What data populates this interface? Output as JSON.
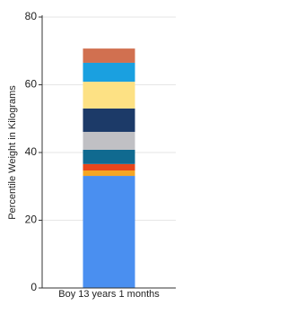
{
  "chart_data": {
    "type": "stacked-bar",
    "y_label": "Percentile Weight in Kilograms",
    "categories": [
      "Boy 13 years 1 months"
    ],
    "series": [
      {
        "color": "#4a8ff0",
        "values": [
          33.1
        ]
      },
      {
        "color": "#f5a623",
        "values": [
          1.6
        ]
      },
      {
        "color": "#e8461a",
        "values": [
          1.9
        ]
      },
      {
        "color": "#106a90",
        "values": [
          4.2
        ]
      },
      {
        "color": "#c0c0c4",
        "values": [
          5.3
        ]
      },
      {
        "color": "#1c3a68",
        "values": [
          6.9
        ]
      },
      {
        "color": "#fde184",
        "values": [
          7.9
        ]
      },
      {
        "color": "#1aa0e0",
        "values": [
          5.6
        ]
      },
      {
        "color": "#d17050",
        "values": [
          4.2
        ]
      }
    ],
    "ylim": [
      0,
      80
    ],
    "yticks": [
      0,
      20,
      40,
      60,
      80
    ],
    "grid": true
  }
}
